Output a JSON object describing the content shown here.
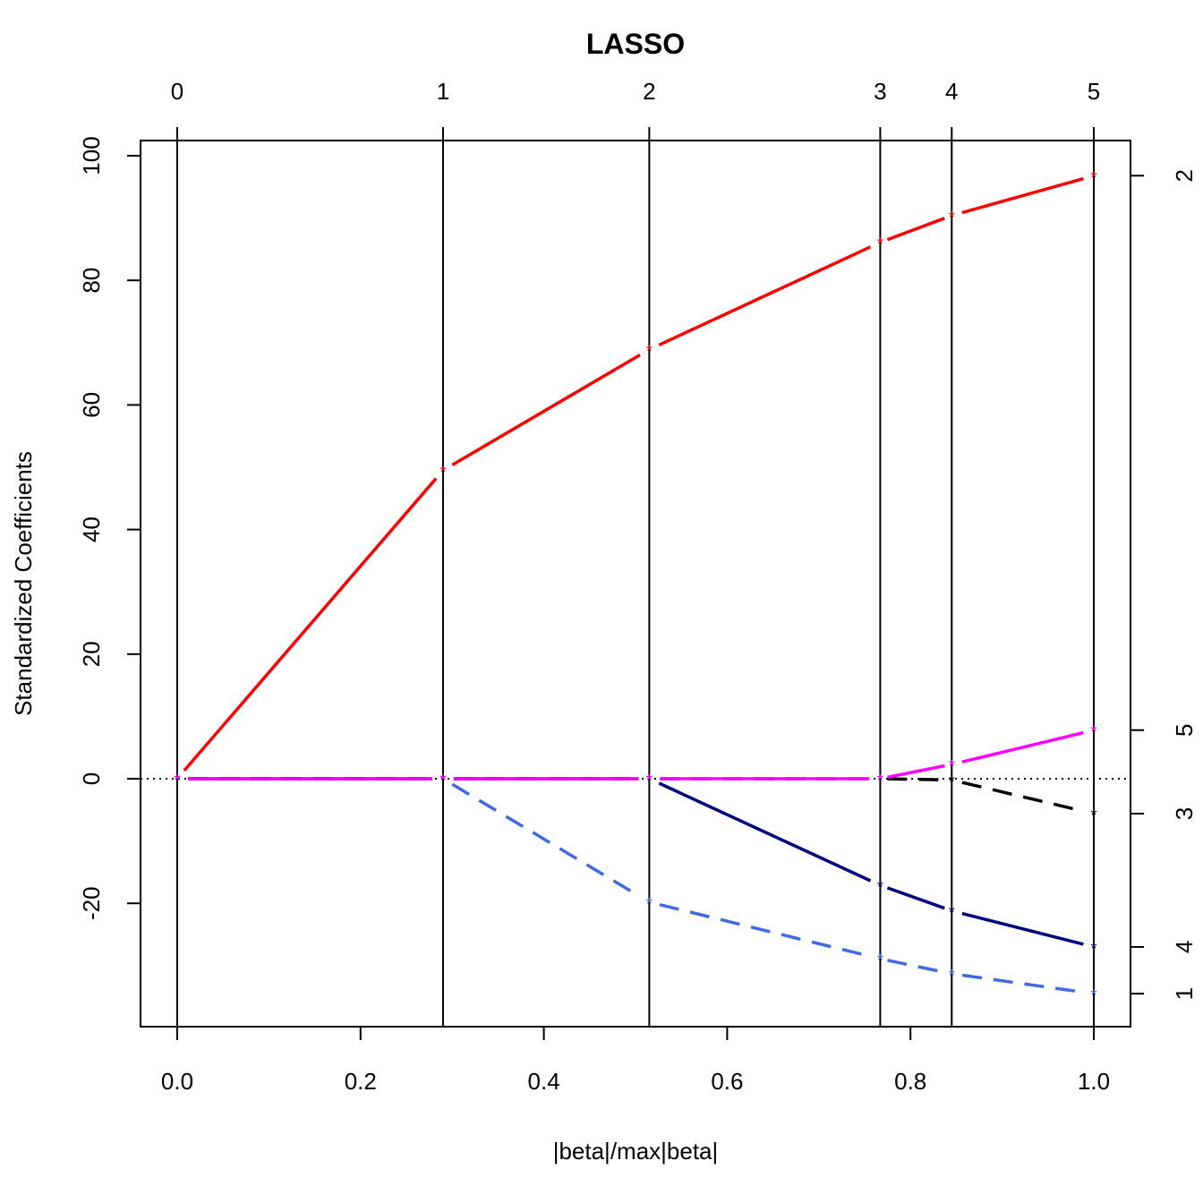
{
  "chart_data": {
    "type": "line",
    "title": "LASSO",
    "xlabel": "|beta|/max|beta|",
    "ylabel": "Standardized Coefficients",
    "xlim": [
      0.0,
      1.0
    ],
    "ylim": [
      -38.5,
      102.6
    ],
    "x_ticks": [
      "0.0",
      "0.2",
      "0.4",
      "0.6",
      "0.8",
      "1.0"
    ],
    "y_ticks": [
      "-20",
      "0",
      "20",
      "40",
      "60",
      "80",
      "100"
    ],
    "step_x": [
      0.0,
      0.29,
      0.515,
      0.767,
      0.845,
      1.0
    ],
    "step_labels": [
      "0",
      "1",
      "2",
      "3",
      "4",
      "5"
    ],
    "zero_line": true,
    "series": [
      {
        "var": "2",
        "color": "#ff0000",
        "dash": "solid",
        "values": [
          0,
          49.5,
          68.9,
          86.1,
          90.4,
          96.8
        ]
      },
      {
        "var": "1",
        "color": "#4169e1",
        "dash": "dashed",
        "values": [
          0,
          0,
          -19.8,
          -28.9,
          -31.3,
          -34.5
        ]
      },
      {
        "var": "4",
        "color": "#000080",
        "dash": "solid",
        "values": [
          0,
          0,
          0,
          -17.1,
          -21.2,
          -27.0
        ]
      },
      {
        "var": "3",
        "color": "#000000",
        "dash": "dashed",
        "values": [
          0,
          0,
          0,
          0,
          -0.2,
          -5.6
        ]
      },
      {
        "var": "5",
        "color": "#ff00ff",
        "dash": "solid",
        "values": [
          0,
          0,
          0,
          0,
          2.3,
          7.8
        ]
      }
    ],
    "right_labels": [
      "2",
      "5",
      "3",
      "4",
      "1"
    ]
  }
}
